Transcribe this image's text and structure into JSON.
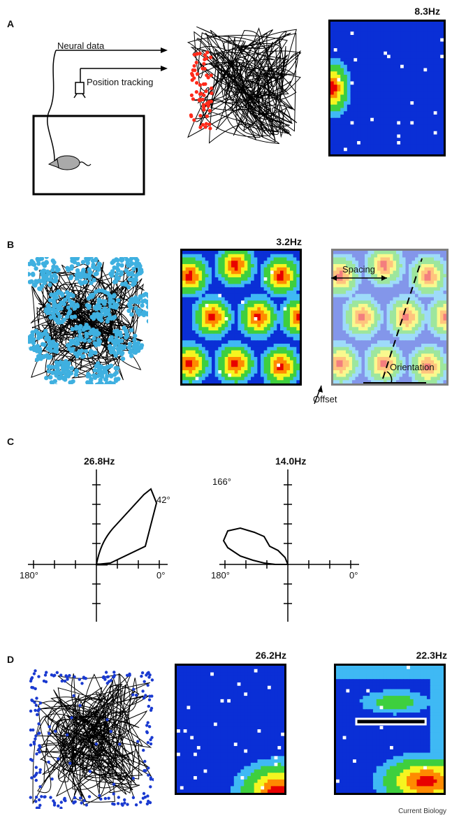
{
  "panels": [
    {
      "label": "A",
      "rate": "8.3Hz",
      "neural": "Neural data",
      "tracking": "Position tracking"
    },
    {
      "label": "B",
      "rate": "3.2Hz",
      "spacing": "Spacing",
      "orientation": "Orientation",
      "offset": "Offset"
    },
    {
      "label": "C",
      "left_rate": "26.8Hz",
      "left_angle": "42°",
      "right_rate": "14.0Hz",
      "right_angle": "166°",
      "deg180": "180°",
      "deg0": "0°"
    },
    {
      "label": "D",
      "rate1": "26.2Hz",
      "rate2": "22.3Hz"
    }
  ],
  "credit": "Current Biology",
  "colors": {
    "path": "#000000",
    "spikes_a": "#ff2a1a",
    "spikes_b": "#3fb0e0",
    "spikes_d": "#1a3ad0",
    "map_low": "#0a2fd6",
    "map_mid": "#3fb9f4",
    "map_green": "#3ecf3e",
    "map_yellow": "#f5f520",
    "map_orange": "#ff8a00",
    "map_high": "#e80000"
  }
}
